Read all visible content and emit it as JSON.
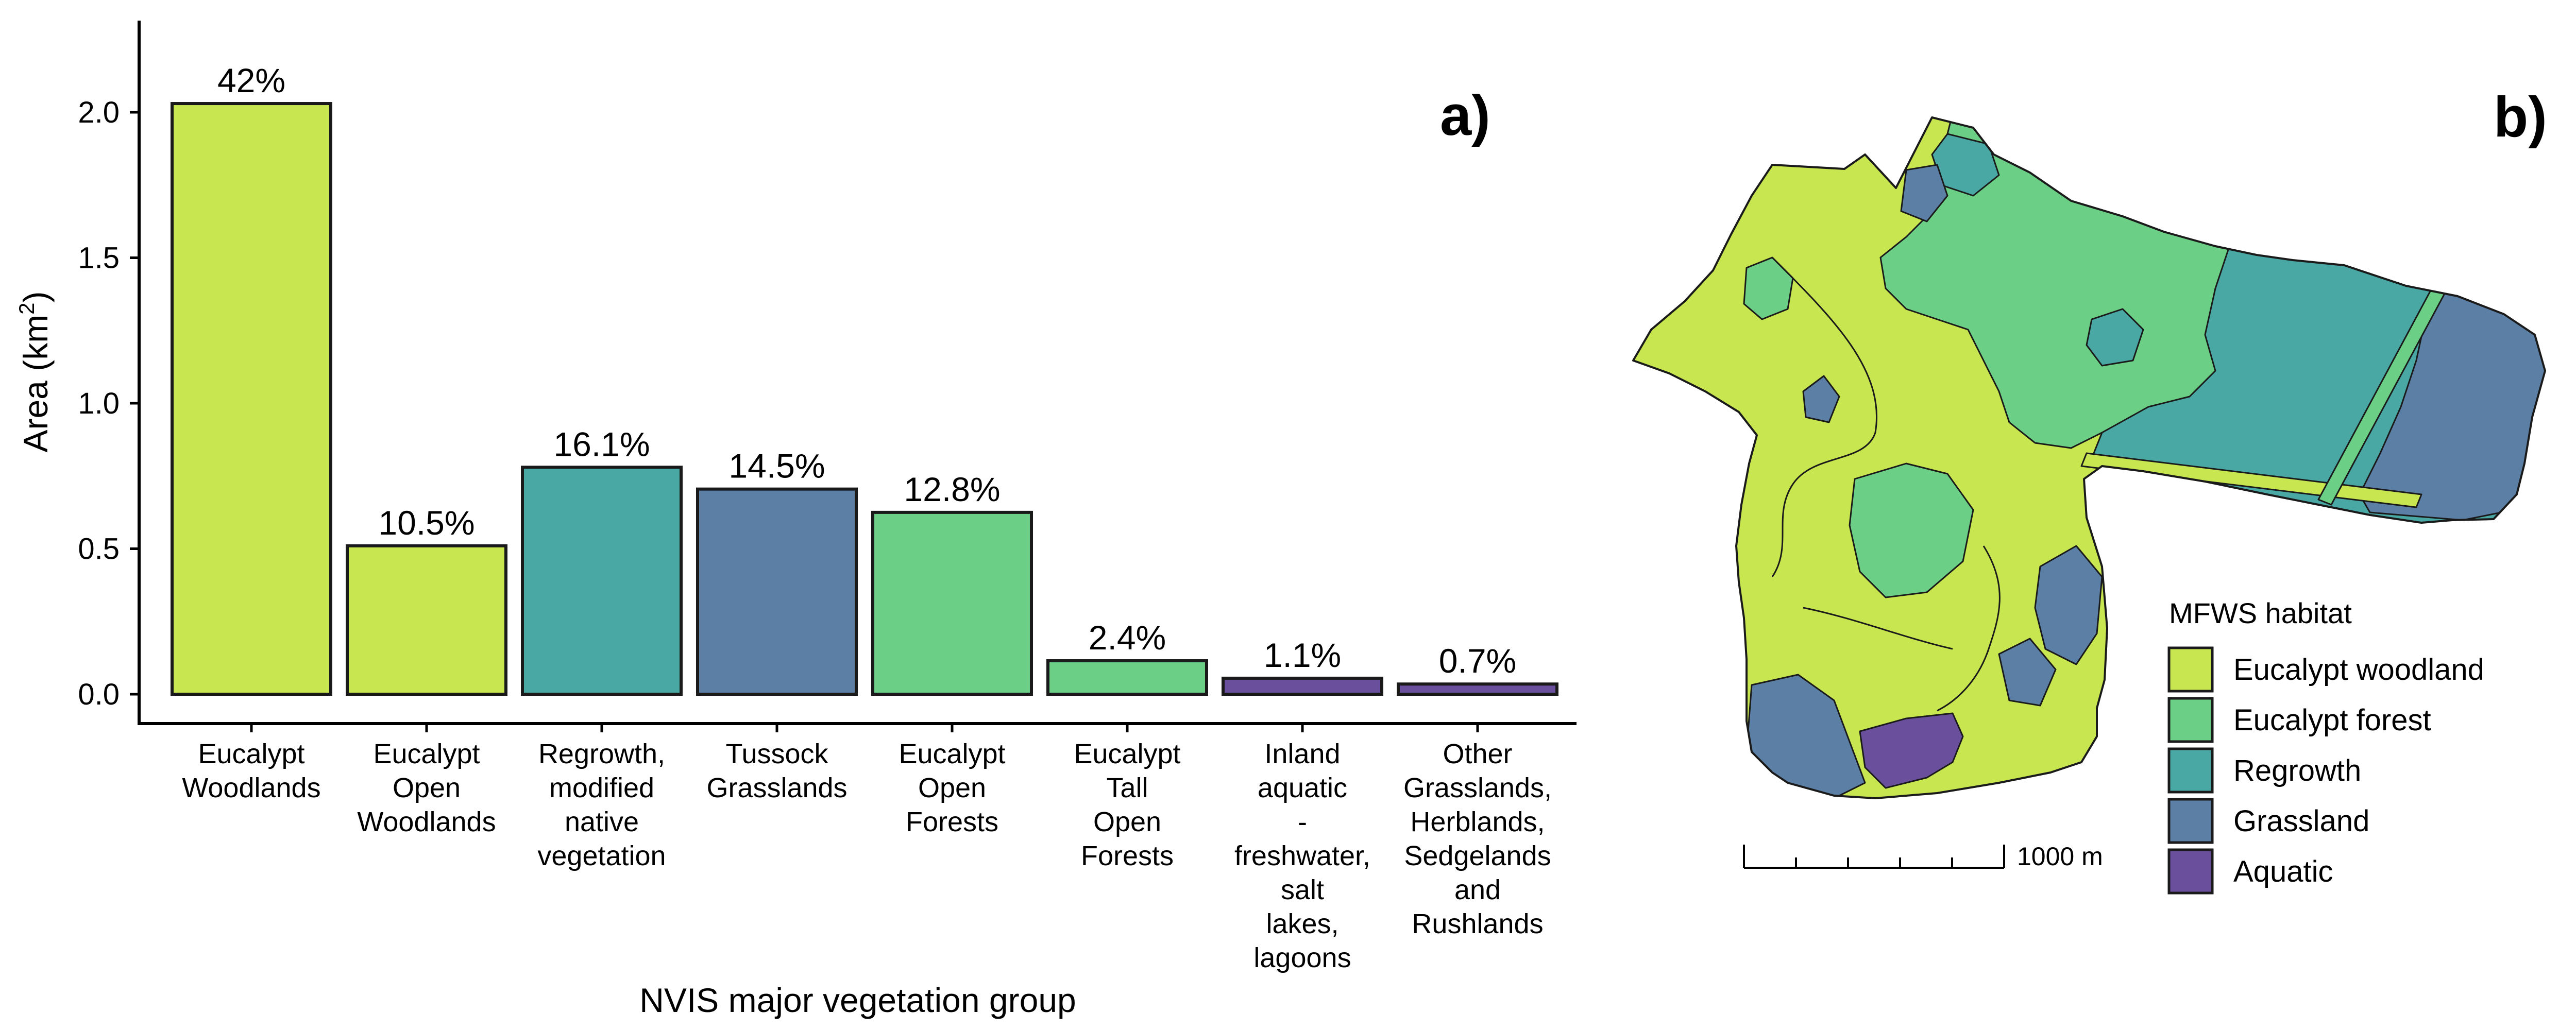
{
  "chart_data": {
    "type": "bar",
    "panel_label": "a)",
    "xlabel": "NVIS major vegetation group",
    "ylabel": "Area (km",
    "ylabel_sup": "2",
    "ylabel_end": ")",
    "ylim": [
      0,
      2.3
    ],
    "yticks": [
      "0.0",
      "0.5",
      "1.0",
      "1.5",
      "2.0"
    ],
    "grid": false,
    "categories": [
      [
        "Eucalypt",
        "Woodlands"
      ],
      [
        "Eucalypt",
        "Open",
        "Woodlands"
      ],
      [
        "Regrowth,",
        "modified",
        "native",
        "vegetation"
      ],
      [
        "Tussock",
        "Grasslands"
      ],
      [
        "Eucalypt",
        "Open",
        "Forests"
      ],
      [
        "Eucalypt",
        "Tall",
        "Open",
        "Forests"
      ],
      [
        "Inland",
        "aquatic",
        "-",
        "freshwater,",
        "salt",
        "lakes,",
        "lagoons"
      ],
      [
        "Other",
        "Grasslands,",
        "Herblands,",
        "Sedgelands",
        "and",
        "Rushlands"
      ]
    ],
    "values": [
      2.03,
      0.51,
      0.78,
      0.705,
      0.625,
      0.115,
      0.055,
      0.035
    ],
    "labels": [
      "42%",
      "10.5%",
      "16.1%",
      "14.5%",
      "12.8%",
      "2.4%",
      "1.1%",
      "0.7%"
    ],
    "colors": [
      "#c8e64f",
      "#c8e64f",
      "#4aa8a4",
      "#5c7fa6",
      "#6ccf86",
      "#6ccf86",
      "#6a4f9c",
      "#6a4f9c"
    ]
  },
  "map": {
    "panel_label": "b)",
    "legend_title": "MFWS habitat",
    "legend": [
      {
        "label": "Eucalypt woodland",
        "color": "#c8e64f"
      },
      {
        "label": "Eucalypt forest",
        "color": "#6ccf86"
      },
      {
        "label": "Regrowth",
        "color": "#4aa8a4"
      },
      {
        "label": "Grassland",
        "color": "#5c7fa6"
      },
      {
        "label": "Aquatic",
        "color": "#6a4f9c"
      }
    ],
    "scale_label": "1000 m"
  }
}
